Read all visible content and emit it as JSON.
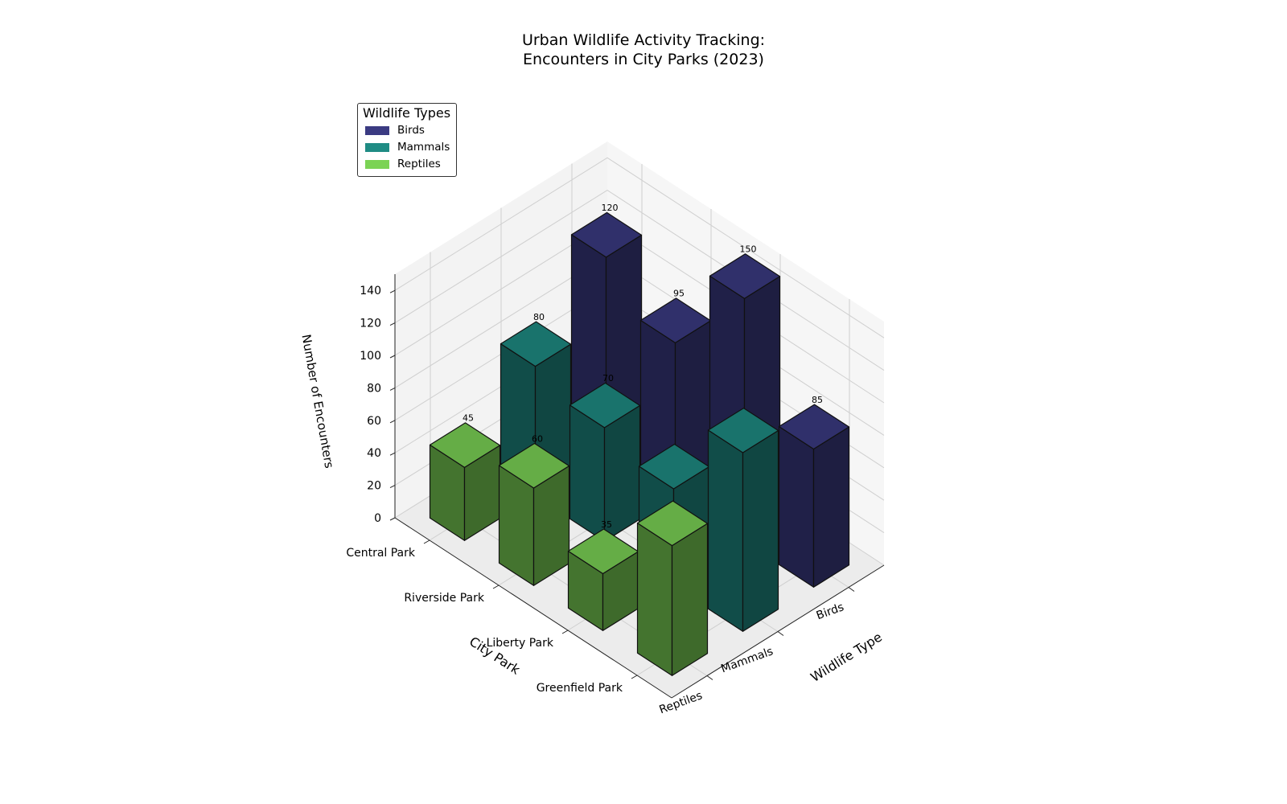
{
  "title": {
    "line1": "Urban Wildlife Activity Tracking:",
    "line2": "Encounters in City Parks (2023)"
  },
  "legend": {
    "title": "Wildlife Types",
    "items": [
      {
        "label": "Birds",
        "color": "#3b3b82"
      },
      {
        "label": "Mammals",
        "color": "#1f8c84"
      },
      {
        "label": "Reptiles",
        "color": "#7bd355"
      }
    ]
  },
  "chart_data": {
    "type": "bar",
    "projection": "3d",
    "parks": [
      "Central Park",
      "Riverside Park",
      "Liberty Park",
      "Greenfield Park"
    ],
    "wildlife_types": [
      "Birds",
      "Mammals",
      "Reptiles"
    ],
    "series": [
      {
        "name": "Birds",
        "color": "#3b3b82",
        "values": [
          120,
          95,
          150,
          85
        ]
      },
      {
        "name": "Mammals",
        "color": "#1f8c84",
        "values": [
          80,
          70,
          60,
          110
        ]
      },
      {
        "name": "Reptiles",
        "color": "#7bd355",
        "values": [
          45,
          60,
          35,
          80
        ]
      }
    ],
    "data_labels": [
      {
        "park": "Central Park",
        "type": "Birds",
        "text": "120"
      },
      {
        "park": "Riverside Park",
        "type": "Birds",
        "text": "95"
      },
      {
        "park": "Liberty Park",
        "type": "Birds",
        "text": "150"
      },
      {
        "park": "Greenfield Park",
        "type": "Birds",
        "text": "85"
      },
      {
        "park": "Central Park",
        "type": "Mammals",
        "text": "80"
      },
      {
        "park": "Riverside Park",
        "type": "Mammals",
        "text": "70"
      },
      {
        "park": "Central Park",
        "type": "Reptiles",
        "text": "45"
      },
      {
        "park": "Riverside Park",
        "type": "Reptiles",
        "text": "60"
      },
      {
        "park": "Liberty Park",
        "type": "Reptiles",
        "text": "35"
      }
    ],
    "xlabel": "City Park",
    "ylabel": "Wildlife Type",
    "zlabel": "Number of Encounters",
    "zticks": [
      0,
      20,
      40,
      60,
      80,
      100,
      120,
      140
    ],
    "zlim": [
      0,
      150
    ],
    "grid": true,
    "legend_position": "top-left"
  }
}
